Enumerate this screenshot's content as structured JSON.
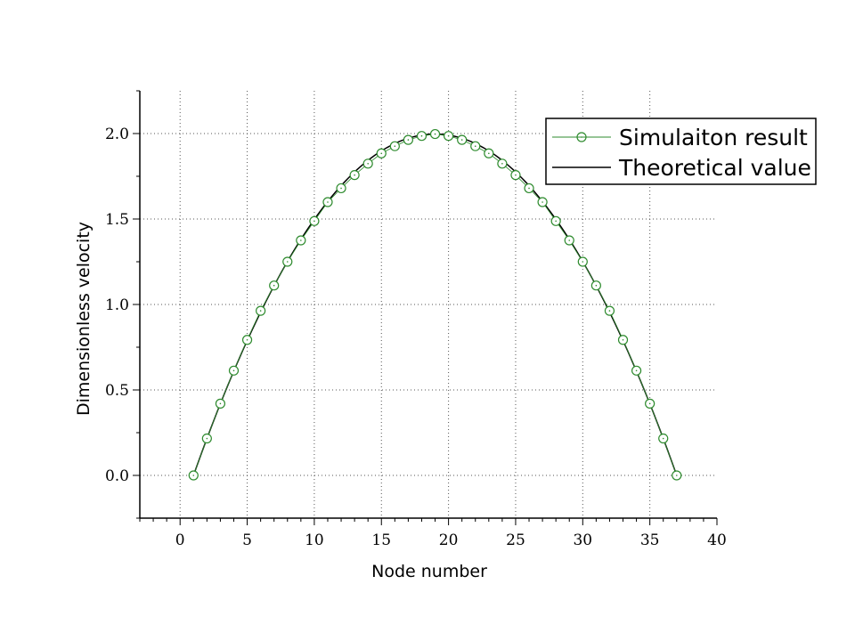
{
  "chart_data": {
    "type": "line",
    "xlabel": "Node number",
    "ylabel": "Dimensionless velocity",
    "xlim": [
      -3,
      40
    ],
    "ylim": [
      -0.25,
      2.25
    ],
    "x_ticks": [
      0,
      5,
      10,
      15,
      20,
      25,
      30,
      35,
      40
    ],
    "y_ticks": [
      0.0,
      0.5,
      1.0,
      1.5,
      2.0
    ],
    "x_tick_labels": [
      "0",
      "5",
      "10",
      "15",
      "20",
      "25",
      "30",
      "35",
      "40"
    ],
    "y_tick_labels": [
      "0.0",
      "0.5",
      "1.0",
      "1.5",
      "2.0"
    ],
    "grid": true,
    "legend_position": "top-right",
    "series": [
      {
        "name": "Simulaiton result",
        "style": "line-with-open-circle-markers",
        "color": "#2e8b2e",
        "x": [
          1,
          2,
          3,
          4,
          5,
          6,
          7,
          8,
          9,
          10,
          11,
          12,
          13,
          14,
          15,
          16,
          17,
          18,
          19,
          20,
          21,
          22,
          23,
          24,
          25,
          26,
          27,
          28,
          29,
          30,
          31,
          32,
          33,
          34,
          35,
          36,
          37
        ],
        "y": [
          0.0,
          0.216,
          0.42,
          0.613,
          0.793,
          0.963,
          1.111,
          1.25,
          1.375,
          1.488,
          1.599,
          1.68,
          1.757,
          1.824,
          1.884,
          1.926,
          1.963,
          1.986,
          1.997,
          1.986,
          1.963,
          1.926,
          1.884,
          1.824,
          1.757,
          1.68,
          1.599,
          1.488,
          1.375,
          1.25,
          1.111,
          0.963,
          0.793,
          0.613,
          0.42,
          0.216,
          0.0
        ]
      },
      {
        "name": "Theoretical value",
        "style": "line",
        "color": "#000000",
        "x": [
          1,
          37
        ],
        "y": [
          0.0,
          0.0
        ]
      }
    ]
  }
}
